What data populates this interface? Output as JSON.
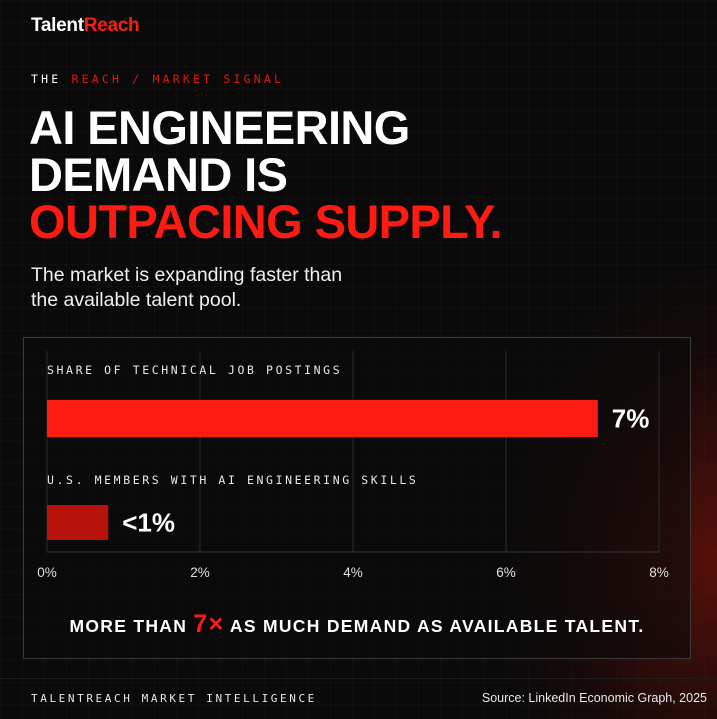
{
  "brand": {
    "part1": "Talent",
    "part2": "Reach"
  },
  "kicker": {
    "part1": "THE ",
    "part2": "REACH / MARKET SIGNAL"
  },
  "headline": {
    "line1": "AI ENGINEERING",
    "line2": "DEMAND IS",
    "line3": "OUTPACING SUPPLY."
  },
  "subheadline": {
    "line1": "The market is expanding faster than",
    "line2": "the available talent pool."
  },
  "chart_data": {
    "type": "bar",
    "orientation": "horizontal",
    "categories": [
      "SHARE OF TECHNICAL JOB POSTINGS",
      "U.S. MEMBERS WITH AI ENGINEERING SKILLS"
    ],
    "values": [
      7.2,
      0.8
    ],
    "value_labels": [
      "7%",
      "<1%"
    ],
    "xlim": [
      0,
      8
    ],
    "x_ticks": [
      0,
      2,
      4,
      6,
      8
    ],
    "x_tick_labels": [
      "0%",
      "2%",
      "4%",
      "6%",
      "8%"
    ],
    "bar_colors": [
      "#ff1a12",
      "#b8120c"
    ],
    "grid": "vertical",
    "annotation": {
      "prefix": "MORE THAN ",
      "highlight": "7×",
      "suffix": " AS MUCH DEMAND AS AVAILABLE TALENT.",
      "highlight_color": "#ff1a12"
    }
  },
  "footer": {
    "left": "TALENTREACH MARKET INTELLIGENCE",
    "source": "Source: LinkedIn Economic Graph, 2025"
  },
  "colors": {
    "accent": "#ff1a12",
    "background": "#0a0a0a"
  }
}
